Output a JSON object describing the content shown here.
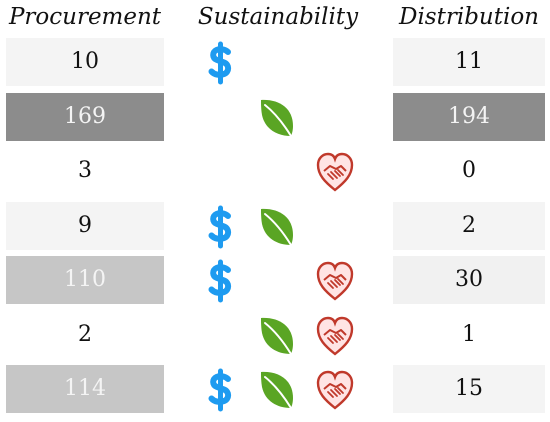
{
  "headers": {
    "procurement": "Procurement",
    "sustainability": "Sustainability",
    "distribution": "Distribution"
  },
  "chart_data": {
    "type": "table",
    "columns": [
      "Procurement",
      "Sustainability",
      "Distribution"
    ],
    "sustainability_icons": [
      "dollar-icon",
      "leaf-icon",
      "handshake-heart-icon"
    ],
    "rows": [
      {
        "procurement": "10",
        "icons": [
          "dollar"
        ],
        "distribution": "11"
      },
      {
        "procurement": "169",
        "icons": [
          "leaf"
        ],
        "distribution": "194"
      },
      {
        "procurement": "3",
        "icons": [
          "handshake-heart"
        ],
        "distribution": "0"
      },
      {
        "procurement": "9",
        "icons": [
          "dollar",
          "leaf"
        ],
        "distribution": "2"
      },
      {
        "procurement": "110",
        "icons": [
          "dollar",
          "handshake-heart"
        ],
        "distribution": "30"
      },
      {
        "procurement": "2",
        "icons": [
          "leaf",
          "handshake-heart"
        ],
        "distribution": "1"
      },
      {
        "procurement": "114",
        "icons": [
          "dollar",
          "leaf",
          "handshake-heart"
        ],
        "distribution": "15"
      }
    ],
    "procurement_shades": [
      "#f4f4f4",
      "#8c8c8c",
      "#ffffff",
      "#f4f4f4",
      "#c6c6c6",
      "#ffffff",
      "#c6c6c6"
    ],
    "distribution_shades": [
      "#f4f4f4",
      "#8c8c8c",
      "#ffffff",
      "#f4f4f4",
      "#f1f1f1",
      "#ffffff",
      "#f4f4f4"
    ],
    "procurement_text_light": [
      false,
      true,
      false,
      false,
      true,
      false,
      true
    ],
    "distribution_text_light": [
      false,
      true,
      false,
      false,
      false,
      false,
      false
    ],
    "colors": {
      "dollar": "#1e9bf0",
      "leaf": "#5aa524",
      "heart_outline": "#c0392b",
      "heart_fill": "#ffe4e4"
    }
  }
}
